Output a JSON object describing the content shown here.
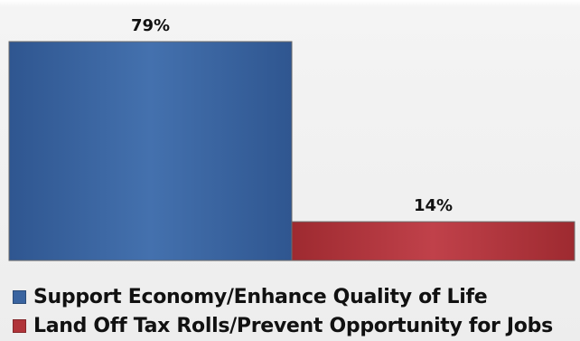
{
  "chart_data": {
    "type": "bar",
    "categories": [
      "Support Economy/Enhance Quality of Life",
      "Land Off Tax Rolls/Prevent Opportunity for Jobs"
    ],
    "values": [
      79,
      14
    ],
    "value_labels": [
      "79%",
      "14%"
    ],
    "colors": [
      "#3a64a0",
      "#b0343a"
    ],
    "ylim": [
      0,
      79
    ],
    "grid": false,
    "legend_position": "bottom"
  }
}
